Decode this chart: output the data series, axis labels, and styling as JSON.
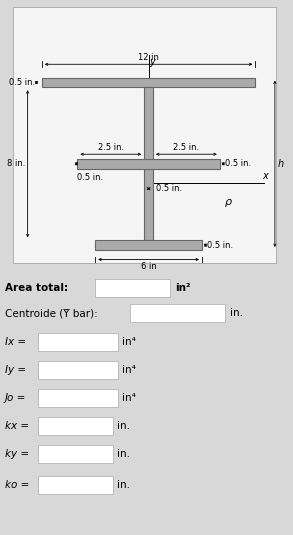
{
  "bg_color": "#d8d8d8",
  "shape_color": "#aaaaaa",
  "shape_edge": "#666666",
  "diagram_bg": "#f0f0f0",
  "labels": {
    "dim_12": "12 in",
    "dim_6": "6 in",
    "dim_8": "8 in.",
    "dim_05_top": "0.5 in.",
    "dim_05_mid": "0.5 in.",
    "dim_05_web": "0.5 in.",
    "dim_05_bot": "0.5 in.",
    "dim_25l": "2.5 in.",
    "dim_25r": "2.5 in.",
    "axis_x": "x",
    "axis_y": "y",
    "axis_h": "h",
    "axis_rho": "ρ"
  },
  "fields": [
    {
      "label": "Area total:",
      "label_style": "bold",
      "unit": "in²",
      "box_wide": false
    },
    {
      "label": "Centroide (Y bar):",
      "label_style": "bold",
      "unit": "in.",
      "box_wide": true
    },
    {
      "label": "Ix =",
      "label_style": "italic",
      "unit": "in⁴",
      "box_wide": false
    },
    {
      "label": "Iy =",
      "label_style": "italic",
      "unit": "in⁴",
      "box_wide": false
    },
    {
      "label": "Jo =",
      "label_style": "italic",
      "unit": "in⁴",
      "box_wide": false
    },
    {
      "label": "kx =",
      "label_style": "italic",
      "unit": "in.",
      "box_wide": false
    },
    {
      "label": "ky =",
      "label_style": "italic",
      "unit": "in.",
      "box_wide": false
    },
    {
      "label": "ko =",
      "label_style": "italic",
      "unit": "in.",
      "box_wide": false
    }
  ]
}
